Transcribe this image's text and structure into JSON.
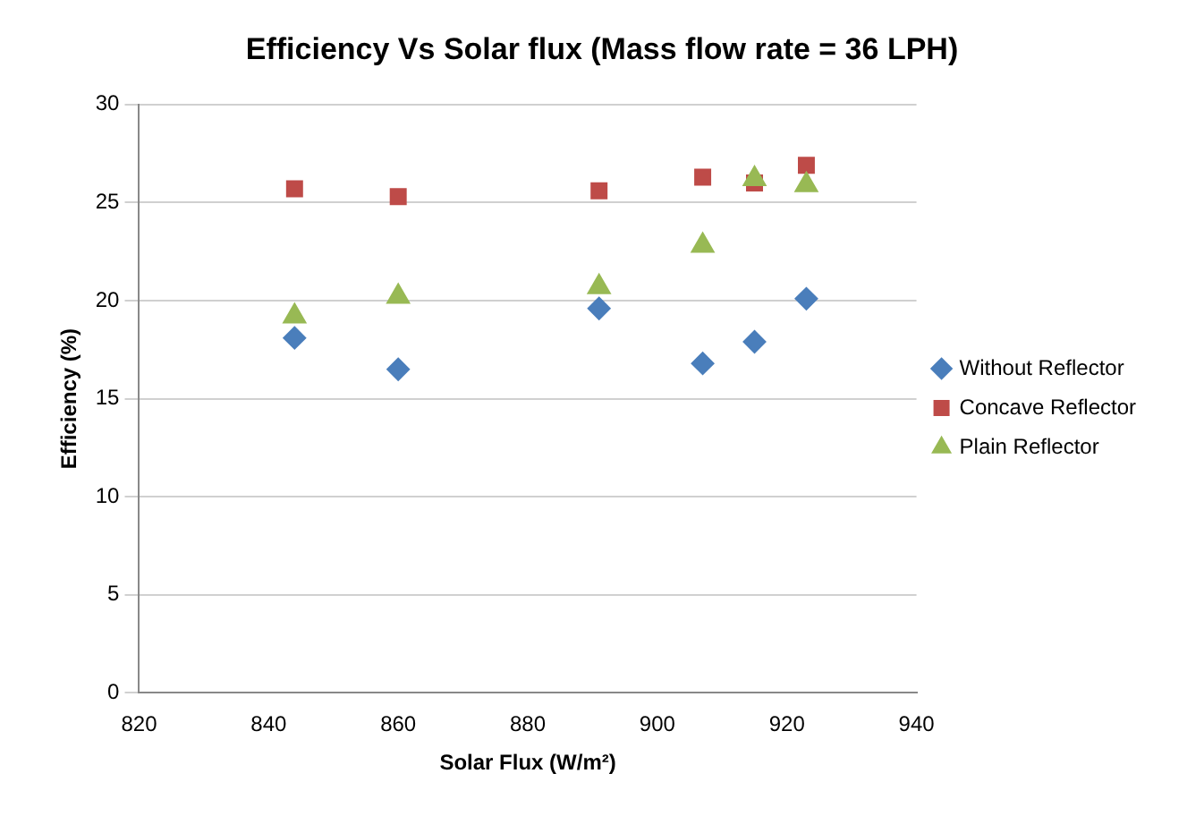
{
  "chart_data": {
    "type": "scatter",
    "title": "Efficiency Vs Solar flux (Mass flow rate = 36 LPH)",
    "xlabel": "Solar Flux (W/m²)",
    "ylabel": "Efficiency (%)",
    "xlim": [
      820,
      940
    ],
    "xticks": [
      820,
      840,
      860,
      880,
      900,
      920,
      940
    ],
    "ylim": [
      0,
      30
    ],
    "yticks": [
      0,
      5,
      10,
      15,
      20,
      25,
      30
    ],
    "grid": "y",
    "legend": "right",
    "series": [
      {
        "name": "Without Reflector",
        "color": "#4a7ebb",
        "marker": "diamond",
        "x": [
          844,
          860,
          891,
          907,
          915,
          923
        ],
        "values": [
          18.1,
          16.5,
          19.6,
          16.8,
          17.9,
          20.1
        ]
      },
      {
        "name": "Concave Reflector",
        "color": "#be4b48",
        "marker": "square",
        "x": [
          844,
          860,
          891,
          907,
          915,
          923
        ],
        "values": [
          25.7,
          25.3,
          25.6,
          26.3,
          26.0,
          26.9
        ]
      },
      {
        "name": "Plain Reflector",
        "color": "#98b954",
        "marker": "triangle",
        "x": [
          844,
          860,
          891,
          907,
          915,
          923
        ],
        "values": [
          19.2,
          20.2,
          20.7,
          22.8,
          26.2,
          25.9
        ]
      }
    ]
  }
}
